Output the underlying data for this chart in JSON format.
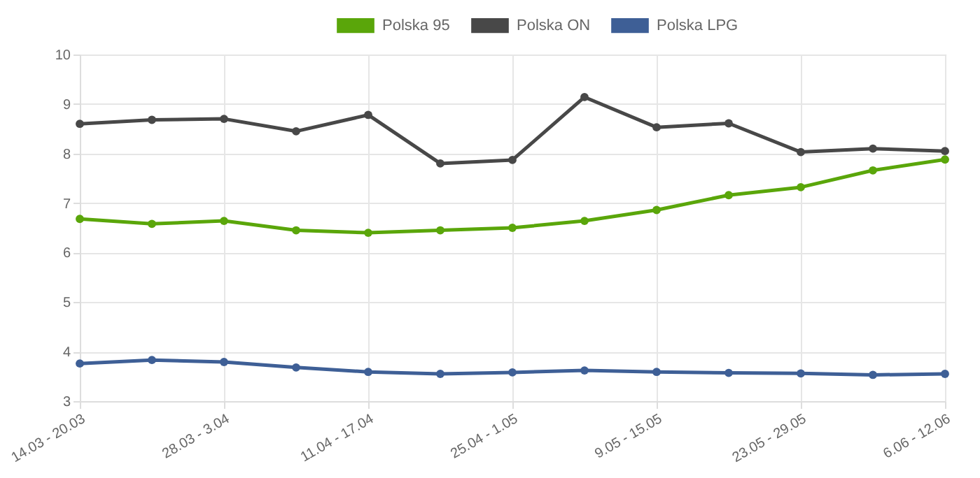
{
  "chart_data": {
    "type": "line",
    "categories": [
      "14.03 - 20.03",
      null,
      "28.03 - 3.04",
      null,
      "11.04 - 17.04",
      null,
      "25.04 - 1.05",
      null,
      "9.05 - 15.05",
      null,
      "23.05 - 29.05",
      null,
      "6.06 - 12.06"
    ],
    "series": [
      {
        "name": "Polska 95",
        "color": "#5aa60a",
        "values": [
          6.68,
          6.58,
          6.64,
          6.45,
          6.4,
          6.45,
          6.5,
          6.64,
          6.86,
          7.16,
          7.32,
          7.66,
          7.88
        ]
      },
      {
        "name": "Polska ON",
        "color": "#484848",
        "values": [
          8.6,
          8.68,
          8.7,
          8.45,
          8.78,
          7.8,
          7.87,
          9.14,
          8.53,
          8.61,
          8.03,
          8.1,
          8.05
        ]
      },
      {
        "name": "Polska LPG",
        "color": "#3e5f96",
        "values": [
          3.76,
          3.83,
          3.79,
          3.68,
          3.59,
          3.55,
          3.58,
          3.62,
          3.59,
          3.57,
          3.56,
          3.53,
          3.55
        ]
      }
    ],
    "ylim": [
      3,
      10
    ],
    "yticks": [
      3,
      4,
      5,
      6,
      7,
      8,
      9,
      10
    ],
    "grid": true,
    "legend": "top",
    "marker": "circle",
    "line_style": "solid"
  }
}
